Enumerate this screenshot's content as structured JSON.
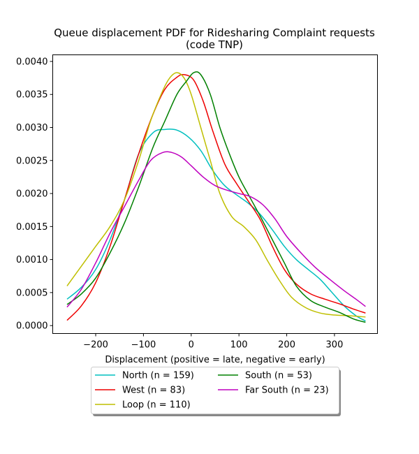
{
  "chart_data": {
    "type": "line",
    "title_line1": "Queue displacement PDF for Ridesharing Complaint  requests",
    "title_line2": "(code TNP)",
    "xlabel": "Displacement (positive = late, negative = early)",
    "ylabel": "",
    "xlim": [
      -290,
      390
    ],
    "ylim": [
      -0.00012,
      0.0041
    ],
    "xticks": [
      -200,
      -100,
      0,
      100,
      200,
      300
    ],
    "xtick_labels": [
      "−200",
      "−100",
      "0",
      "100",
      "200",
      "300"
    ],
    "yticks": [
      0.0,
      0.0005,
      0.001,
      0.0015,
      0.002,
      0.0025,
      0.003,
      0.0035,
      0.004
    ],
    "ytick_labels": [
      "0.0000",
      "0.0005",
      "0.0010",
      "0.0015",
      "0.0020",
      "0.0025",
      "0.0030",
      "0.0035",
      "0.0040"
    ],
    "grid": false,
    "legend_position": "bottom",
    "series": [
      {
        "name": "North (n = 159)",
        "color": "#00bfbf",
        "points": [
          [
            -260,
            0.0004
          ],
          [
            -230,
            0.00058
          ],
          [
            -200,
            0.00085
          ],
          [
            -170,
            0.0013
          ],
          [
            -140,
            0.0019
          ],
          [
            -110,
            0.0026
          ],
          [
            -80,
            0.00292
          ],
          [
            -55,
            0.00297
          ],
          [
            -30,
            0.00296
          ],
          [
            -5,
            0.00285
          ],
          [
            20,
            0.00265
          ],
          [
            45,
            0.00235
          ],
          [
            70,
            0.00212
          ],
          [
            95,
            0.00198
          ],
          [
            120,
            0.00185
          ],
          [
            145,
            0.00168
          ],
          [
            170,
            0.00145
          ],
          [
            195,
            0.0012
          ],
          [
            220,
            0.001
          ],
          [
            245,
            0.00085
          ],
          [
            270,
            0.0007
          ],
          [
            295,
            0.0005
          ],
          [
            320,
            0.0003
          ],
          [
            345,
            0.00015
          ],
          [
            365,
            7e-05
          ]
        ]
      },
      {
        "name": "West (n = 83)",
        "color": "#ee0000",
        "points": [
          [
            -260,
            8e-05
          ],
          [
            -230,
            0.0003
          ],
          [
            -200,
            0.00065
          ],
          [
            -170,
            0.0012
          ],
          [
            -140,
            0.0019
          ],
          [
            -110,
            0.0026
          ],
          [
            -80,
            0.0032
          ],
          [
            -55,
            0.00358
          ],
          [
            -30,
            0.00376
          ],
          [
            -15,
            0.0038
          ],
          [
            5,
            0.00372
          ],
          [
            25,
            0.0034
          ],
          [
            45,
            0.00295
          ],
          [
            70,
            0.00245
          ],
          [
            95,
            0.00215
          ],
          [
            120,
            0.00188
          ],
          [
            145,
            0.0016
          ],
          [
            170,
            0.0012
          ],
          [
            195,
            0.00085
          ],
          [
            220,
            0.00063
          ],
          [
            250,
            0.00048
          ],
          [
            280,
            0.0004
          ],
          [
            310,
            0.00033
          ],
          [
            340,
            0.00025
          ],
          [
            365,
            0.00019
          ]
        ]
      },
      {
        "name": "Loop (n = 110)",
        "color": "#bfbf00",
        "points": [
          [
            -260,
            0.0006
          ],
          [
            -230,
            0.0009
          ],
          [
            -200,
            0.0012
          ],
          [
            -170,
            0.0015
          ],
          [
            -140,
            0.0019
          ],
          [
            -110,
            0.0025
          ],
          [
            -85,
            0.0031
          ],
          [
            -60,
            0.00355
          ],
          [
            -45,
            0.00375
          ],
          [
            -30,
            0.00383
          ],
          [
            -15,
            0.00375
          ],
          [
            0,
            0.0035
          ],
          [
            20,
            0.003
          ],
          [
            40,
            0.0025
          ],
          [
            60,
            0.002
          ],
          [
            85,
            0.00165
          ],
          [
            110,
            0.0015
          ],
          [
            135,
            0.0013
          ],
          [
            160,
            0.00098
          ],
          [
            185,
            0.00068
          ],
          [
            210,
            0.00043
          ],
          [
            240,
            0.00027
          ],
          [
            270,
            0.00019
          ],
          [
            300,
            0.00016
          ],
          [
            330,
            0.00015
          ],
          [
            365,
            0.00013
          ]
        ]
      },
      {
        "name": "South (n = 53)",
        "color": "#008000",
        "points": [
          [
            -260,
            0.00032
          ],
          [
            -230,
            0.00048
          ],
          [
            -200,
            0.00072
          ],
          [
            -170,
            0.0011
          ],
          [
            -140,
            0.00155
          ],
          [
            -110,
            0.0021
          ],
          [
            -80,
            0.0027
          ],
          [
            -55,
            0.0031
          ],
          [
            -30,
            0.0035
          ],
          [
            -10,
            0.0037
          ],
          [
            5,
            0.00383
          ],
          [
            20,
            0.0038
          ],
          [
            40,
            0.0035
          ],
          [
            60,
            0.003
          ],
          [
            80,
            0.0026
          ],
          [
            100,
            0.00225
          ],
          [
            120,
            0.00198
          ],
          [
            145,
            0.00165
          ],
          [
            170,
            0.0013
          ],
          [
            195,
            0.00095
          ],
          [
            220,
            0.0006
          ],
          [
            250,
            0.00038
          ],
          [
            280,
            0.00028
          ],
          [
            310,
            0.0002
          ],
          [
            340,
            0.0001
          ],
          [
            365,
            5e-05
          ]
        ]
      },
      {
        "name": "Far South (n = 23)",
        "color": "#bf00bf",
        "points": [
          [
            -260,
            0.00028
          ],
          [
            -230,
            0.00055
          ],
          [
            -200,
            0.00095
          ],
          [
            -170,
            0.0014
          ],
          [
            -140,
            0.0018
          ],
          [
            -110,
            0.0022
          ],
          [
            -85,
            0.0025
          ],
          [
            -60,
            0.00262
          ],
          [
            -40,
            0.00262
          ],
          [
            -20,
            0.00255
          ],
          [
            0,
            0.00242
          ],
          [
            25,
            0.00225
          ],
          [
            50,
            0.00212
          ],
          [
            75,
            0.00205
          ],
          [
            100,
            0.002
          ],
          [
            125,
            0.00195
          ],
          [
            150,
            0.00183
          ],
          [
            175,
            0.00162
          ],
          [
            200,
            0.00135
          ],
          [
            230,
            0.0011
          ],
          [
            260,
            0.00088
          ],
          [
            290,
            0.0007
          ],
          [
            320,
            0.00053
          ],
          [
            345,
            0.0004
          ],
          [
            365,
            0.00029
          ]
        ]
      }
    ]
  }
}
